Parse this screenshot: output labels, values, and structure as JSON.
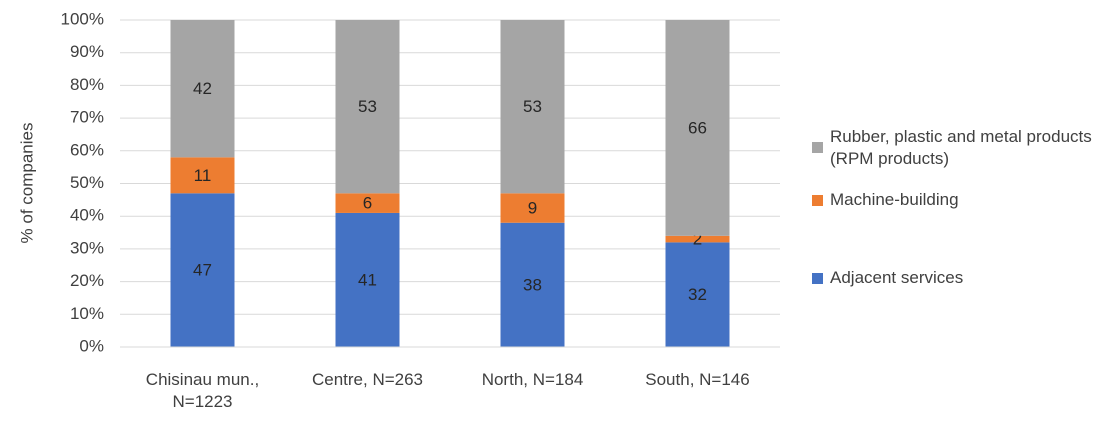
{
  "chart_data": {
    "type": "stacked_bar",
    "y_label": "% of companies",
    "categories": [
      "Chisinau mun., N=1223",
      "Centre, N=263",
      "North, N=184",
      "South, N=146"
    ],
    "series": [
      {
        "name": "Adjacent services",
        "color": "#4472c4",
        "values": [
          47,
          41,
          38,
          32
        ]
      },
      {
        "name": "Machine-building",
        "color": "#ed7d31",
        "values": [
          11,
          6,
          9,
          2
        ]
      },
      {
        "name": "Rubber, plastic and metal products (RPM products)",
        "color": "#a5a5a5",
        "values": [
          42,
          53,
          53,
          66
        ]
      }
    ],
    "ylim": [
      0,
      100
    ],
    "yticks": [
      {
        "value": 0,
        "label": "0%"
      },
      {
        "value": 10,
        "label": "10%"
      },
      {
        "value": 20,
        "label": "20%"
      },
      {
        "value": 30,
        "label": "30%"
      },
      {
        "value": 40,
        "label": "40%"
      },
      {
        "value": 50,
        "label": "50%"
      },
      {
        "value": 60,
        "label": "60%"
      },
      {
        "value": 70,
        "label": "70%"
      },
      {
        "value": 80,
        "label": "80%"
      },
      {
        "value": 90,
        "label": "90%"
      },
      {
        "value": 100,
        "label": "100%"
      }
    ],
    "grid": true,
    "legend": "right"
  }
}
